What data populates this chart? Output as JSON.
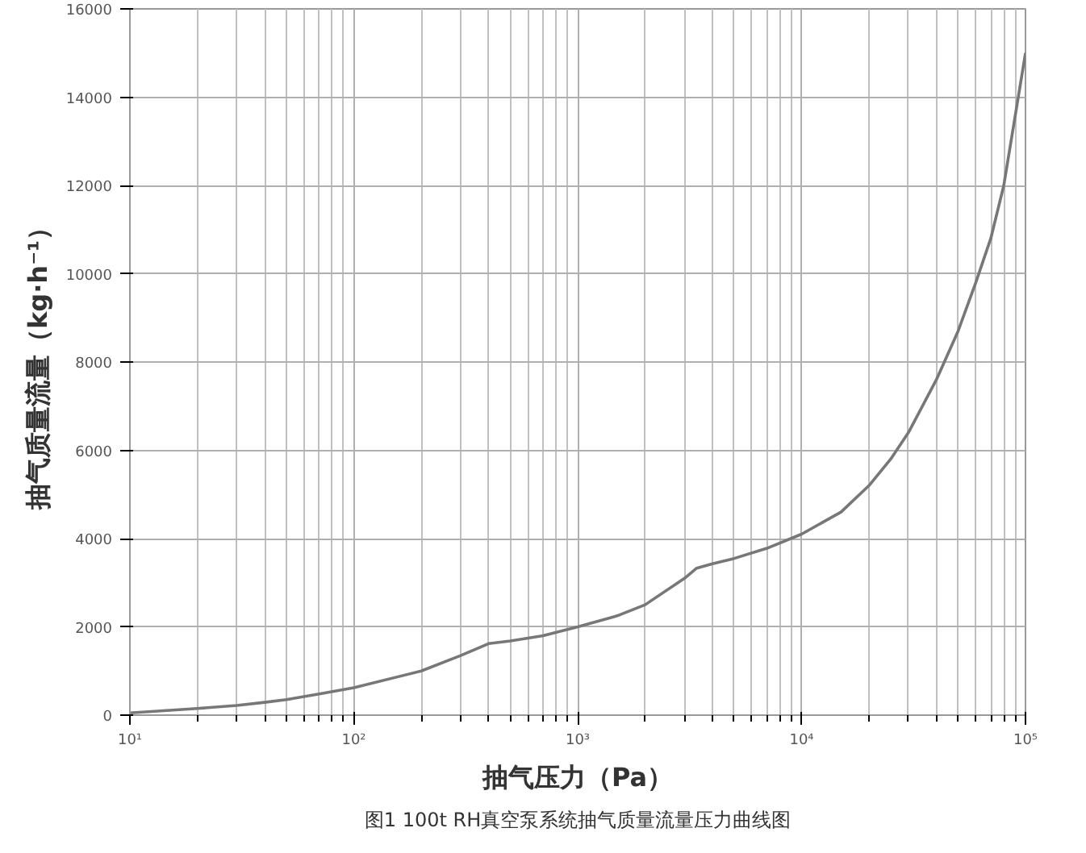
{
  "chart_data": {
    "type": "line",
    "xlabel": "抽气压力（Pa）",
    "ylabel": "抽气质量流量（kg·h⁻¹）",
    "log": "x",
    "xlim": [
      10,
      100000
    ],
    "ylim": [
      0,
      16000
    ],
    "xticks": [
      {
        "value": 10,
        "label": "10¹"
      },
      {
        "value": 100,
        "label": "10²"
      },
      {
        "value": 1000,
        "label": "10³"
      },
      {
        "value": 10000,
        "label": "10⁴"
      },
      {
        "value": 100000,
        "label": "10⁵"
      }
    ],
    "yticks": [
      0,
      2000,
      4000,
      6000,
      8000,
      10000,
      12000,
      14000,
      16000
    ],
    "grid": true,
    "marker": "none",
    "line_style": "solid",
    "x": [
      10,
      20,
      30,
      40,
      50,
      70,
      100,
      200,
      300,
      400,
      500,
      700,
      1000,
      1500,
      2000,
      3000,
      3400,
      4000,
      5000,
      7000,
      10000,
      15000,
      20000,
      25000,
      30000,
      40000,
      50000,
      60000,
      70000,
      80000,
      100000
    ],
    "series": [
      {
        "color": "#777777",
        "values": [
          50,
          150,
          220,
          290,
          350,
          480,
          620,
          1000,
          1350,
          1620,
          1680,
          1800,
          2000,
          2250,
          2500,
          3100,
          3330,
          3430,
          3550,
          3780,
          4100,
          4600,
          5200,
          5800,
          6400,
          7600,
          8700,
          9800,
          10800,
          12000,
          15000
        ]
      }
    ],
    "annotations": [
      "图1 100t RH真空泵系统抽气质量流量压力曲线图"
    ]
  }
}
